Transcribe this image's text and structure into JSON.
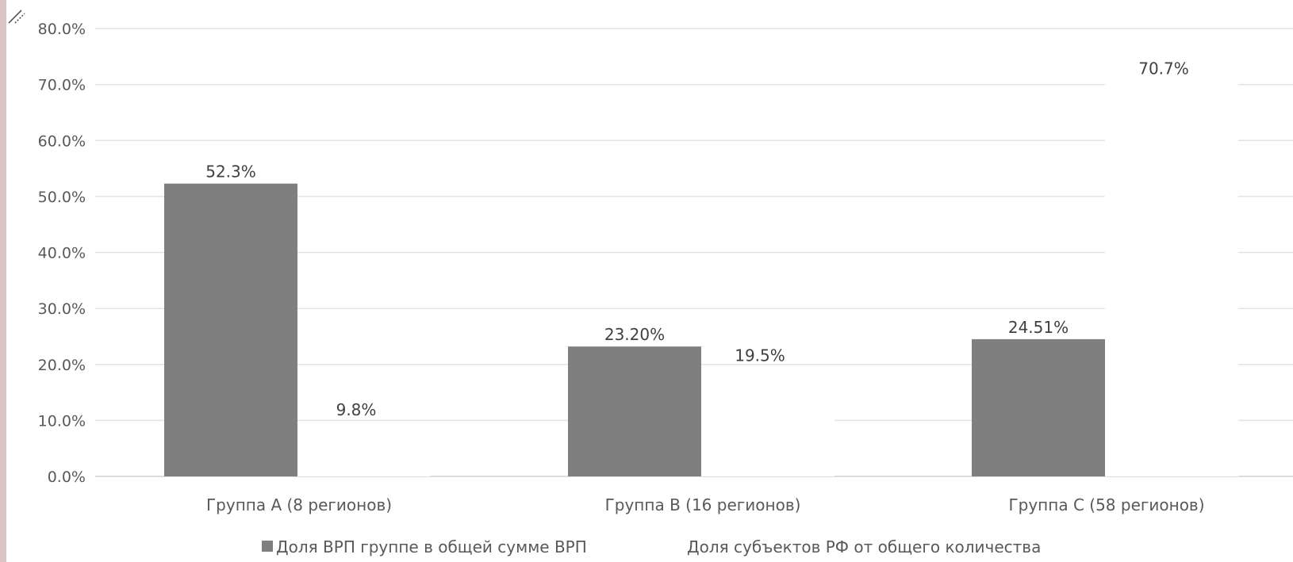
{
  "chart_data": {
    "type": "bar",
    "categories": [
      "Группа А (8 регионов)",
      "Группа В (16 регионов)",
      "Группа С (58 регионов)"
    ],
    "series": [
      {
        "name": "Доля ВРП группе в общей сумме ВРП",
        "values": [
          52.3,
          23.2,
          24.51
        ],
        "labels": [
          "52.3%",
          "23.20%",
          "24.51%"
        ],
        "color": "#7f7f7f"
      },
      {
        "name": "Доля субъектов РФ от общего количества",
        "values": [
          9.8,
          19.5,
          70.7
        ],
        "labels": [
          "9.8%",
          "19.5%",
          "70.7%"
        ],
        "color": "#ffffff"
      }
    ],
    "y_ticks": [
      "0.0%",
      "10.0%",
      "20.0%",
      "30.0%",
      "40.0%",
      "50.0%",
      "60.0%",
      "70.0%",
      "80.0%"
    ],
    "ylim": [
      0,
      80
    ],
    "grid": true,
    "legend_position": "bottom"
  }
}
